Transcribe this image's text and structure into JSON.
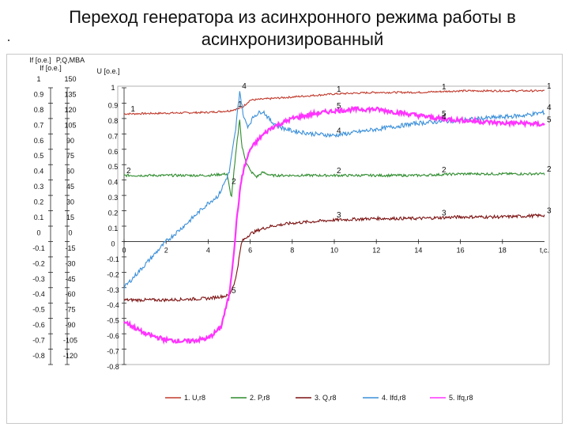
{
  "page": {
    "title_line1": "Переход генератора из асинхронного режима работы в",
    "title_line2": "асинхронизированный"
  },
  "chart_data": {
    "type": "line",
    "title": "Переход генератора из асинхронного режима работы в асинхронизированный",
    "left_axis_label_1": "If [o.e.]",
    "left_axis_label_2": "P,Q,MBA",
    "left_axis_label_3": "If [o.e.]",
    "right_axis_label": "U [o.e.]",
    "xlabel": "t,c.",
    "xlim": [
      0,
      20
    ],
    "x_ticks": [
      0,
      2,
      4,
      6,
      8,
      10,
      12,
      14,
      16,
      18
    ],
    "x_tick_labels": [
      "0",
      "2",
      "4",
      "6",
      "8",
      "10",
      "12",
      "14",
      "16",
      "18"
    ],
    "ylim": [
      -0.8,
      1.0
    ],
    "u_ticks": [
      "1",
      "0.9",
      "0.8",
      "0.7",
      "0.6",
      "0.5",
      "0.4",
      "0.3",
      "0.2",
      "0.1",
      "0",
      "-0.1",
      "-0.2",
      "-0.3",
      "-0.4",
      "-0.5",
      "-0.6",
      "-0.7",
      "-0.8"
    ],
    "if_ticks": [
      "1",
      "0.9",
      "0.8",
      "0.7",
      "0.6",
      "0.5",
      "0.4",
      "0.3",
      "0.2",
      "0.1",
      "0",
      "-0.1",
      "-0.2",
      "-0.3",
      "-0.4",
      "-0.5",
      "-0.6",
      "-0.7",
      "-0.8"
    ],
    "pq_ticks": [
      "150",
      "135",
      "120",
      "105",
      "90",
      "75",
      "60",
      "45",
      "30",
      "15",
      "0",
      "-15",
      "-30",
      "-45",
      "-60",
      "-75",
      "-90",
      "-105",
      "-120"
    ],
    "series": [
      {
        "name": "1. U,r8",
        "marker": "1",
        "color": "#c0392b",
        "x": [
          0,
          4,
          5,
          5.6,
          6,
          8,
          10,
          12,
          14,
          16,
          18,
          20
        ],
        "y": [
          0.83,
          0.84,
          0.85,
          0.87,
          0.92,
          0.94,
          0.96,
          0.97,
          0.97,
          0.98,
          0.98,
          0.98
        ],
        "marker_x": [
          0.2,
          5.3,
          10,
          15,
          20
        ]
      },
      {
        "name": "2. P,r8",
        "marker": "2",
        "color": "#2e8b2e",
        "x": [
          0,
          4,
          4.9,
          5.1,
          5.3,
          5.5,
          5.6,
          5.8,
          6,
          6.3,
          6.6,
          7,
          8,
          10,
          12,
          14,
          16,
          18,
          20
        ],
        "y": [
          0.43,
          0.43,
          0.44,
          0.28,
          0.55,
          0.8,
          0.62,
          0.52,
          0.46,
          0.42,
          0.45,
          0.43,
          0.43,
          0.43,
          0.43,
          0.43,
          0.44,
          0.44,
          0.44
        ],
        "marker_x": [
          0,
          5.0,
          10,
          15,
          20
        ]
      },
      {
        "name": "3. Q,r8",
        "marker": "3",
        "color": "#7b1010",
        "x": [
          0,
          2,
          4,
          5,
          5.3,
          5.6,
          6,
          6.5,
          7,
          8,
          10,
          12,
          14,
          16,
          18,
          20
        ],
        "y": [
          -0.38,
          -0.38,
          -0.37,
          -0.35,
          -0.25,
          0.0,
          0.05,
          0.08,
          0.1,
          0.12,
          0.14,
          0.15,
          0.15,
          0.16,
          0.16,
          0.17
        ],
        "marker_x": [
          10,
          15,
          20
        ]
      },
      {
        "name": "4. Ifd,r8",
        "marker": "4",
        "color": "#3a8fd9",
        "x": [
          0,
          1,
          2,
          3,
          4,
          4.5,
          5,
          5.3,
          5.5,
          5.7,
          5.9,
          6.2,
          6.6,
          7,
          7.5,
          8,
          9,
          10,
          11,
          12,
          13,
          14,
          15,
          16,
          17,
          18,
          19,
          20
        ],
        "y": [
          -0.3,
          -0.15,
          0.0,
          0.12,
          0.25,
          0.3,
          0.45,
          0.72,
          0.98,
          0.8,
          0.75,
          0.82,
          0.85,
          0.78,
          0.74,
          0.72,
          0.7,
          0.69,
          0.71,
          0.73,
          0.75,
          0.77,
          0.78,
          0.79,
          0.8,
          0.81,
          0.82,
          0.84
        ],
        "marker_x": [
          5.5,
          10,
          15,
          20
        ]
      },
      {
        "name": "5. Ifq,r8",
        "marker": "5",
        "color": "#ff33ff",
        "x": [
          0,
          0.5,
          1,
          2,
          3,
          4,
          4.6,
          5,
          5.2,
          5.4,
          5.6,
          5.8,
          6,
          6.5,
          7,
          8,
          9,
          10,
          11,
          12,
          13,
          14,
          15,
          16,
          17,
          18,
          19,
          20
        ],
        "y": [
          -0.52,
          -0.56,
          -0.6,
          -0.64,
          -0.65,
          -0.63,
          -0.56,
          -0.35,
          -0.1,
          0.2,
          0.42,
          0.52,
          0.6,
          0.68,
          0.74,
          0.8,
          0.83,
          0.85,
          0.86,
          0.86,
          0.84,
          0.82,
          0.8,
          0.79,
          0.78,
          0.77,
          0.77,
          0.76
        ],
        "marker_x": [
          5.0,
          10,
          15,
          20
        ]
      }
    ],
    "legend_position": "bottom",
    "grid": false
  }
}
